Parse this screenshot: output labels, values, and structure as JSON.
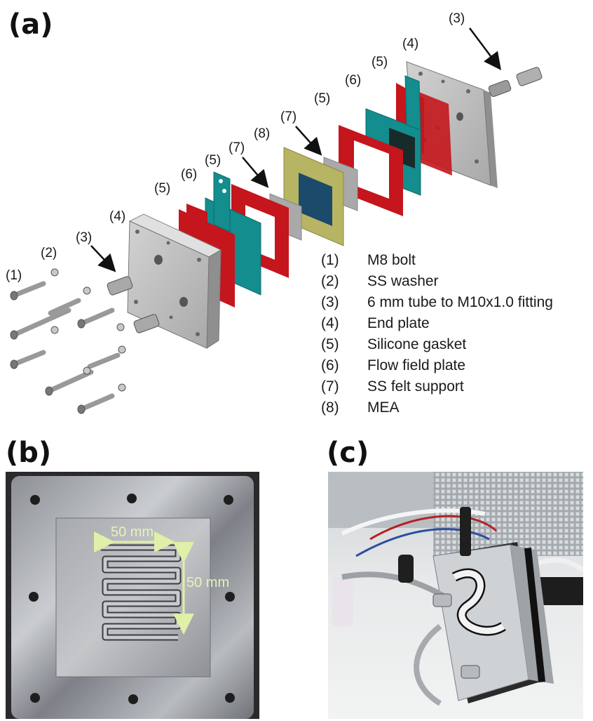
{
  "panels": {
    "a": "(a)",
    "b": "(b)",
    "c": "(c)"
  },
  "callouts": {
    "c1": "(1)",
    "c2": "(2)",
    "c3_left": "(3)",
    "c3_right": "(3)",
    "c4_left": "(4)",
    "c4_right": "(4)",
    "c5_a": "(5)",
    "c5_b": "(5)",
    "c5_c": "(5)",
    "c5_d": "(5)",
    "c6_left": "(6)",
    "c6_right": "(6)",
    "c7_left": "(7)",
    "c7_right": "(7)",
    "c8": "(8)"
  },
  "legend": [
    {
      "num": "(1)",
      "label": "M8 bolt"
    },
    {
      "num": "(2)",
      "label": "SS washer"
    },
    {
      "num": "(3)",
      "label": "6 mm tube to M10x1.0 fitting"
    },
    {
      "num": "(4)",
      "label": "End plate"
    },
    {
      "num": "(5)",
      "label": "Silicone gasket"
    },
    {
      "num": "(6)",
      "label": "Flow field plate"
    },
    {
      "num": "(7)",
      "label": "SS felt support"
    },
    {
      "num": "(8)",
      "label": "MEA"
    }
  ],
  "photo_b": {
    "width_label": "50 mm",
    "height_label": "50 mm"
  },
  "colors": {
    "end_plate": "#bdbdbd",
    "gasket": "#c4161c",
    "flow_field": "#138d8d",
    "felt": "#a9a9a9",
    "mea_frame": "#b7b464",
    "mea_center": "#1b4a6b",
    "dimension_arrow": "#dff0a8"
  }
}
